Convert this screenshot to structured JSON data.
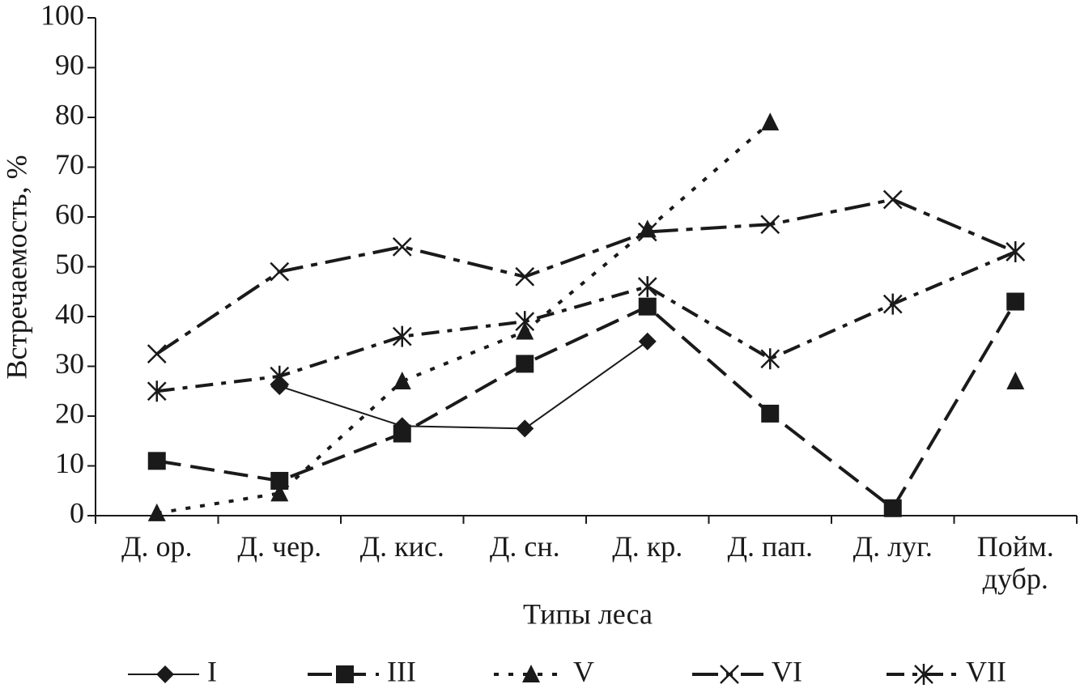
{
  "chart_data": {
    "type": "line",
    "x_label": "Типы леса",
    "y_label": "Встречаемость, %",
    "categories": [
      "Д. ор.",
      "Д. чер.",
      "Д. кис.",
      "Д. сн.",
      "Д. кр.",
      "Д. пап.",
      "Д. луг.",
      "Пойм. дубр."
    ],
    "series": [
      {
        "name": "I",
        "color": "#1a1a1a",
        "values": [
          null,
          26,
          18,
          17.5,
          35,
          null,
          null,
          null
        ]
      },
      {
        "name": "III",
        "color": "#1a1a1a",
        "values": [
          11,
          7,
          16.5,
          30.5,
          42,
          20.5,
          1.5,
          43
        ]
      },
      {
        "name": "V",
        "color": "#1a1a1a",
        "values": [
          0.5,
          4.5,
          27,
          37,
          57.5,
          79,
          null,
          27
        ]
      },
      {
        "name": "VI",
        "color": "#1a1a1a",
        "values": [
          32.5,
          49,
          54,
          48,
          57,
          58.5,
          63.5,
          53
        ]
      },
      {
        "name": "VII",
        "color": "#1a1a1a",
        "values": [
          25,
          28,
          36,
          39,
          46,
          31.5,
          42.5,
          53
        ]
      }
    ],
    "ylim": [
      0,
      100
    ],
    "yticks": [
      0,
      10,
      20,
      30,
      40,
      50,
      60,
      70,
      80,
      90,
      100
    ],
    "grid": false
  }
}
